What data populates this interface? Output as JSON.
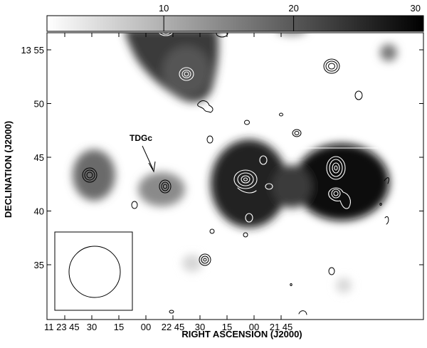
{
  "chart_data": {
    "type": "heatmap",
    "title": "",
    "xlabel": "RIGHT ASCENSION (J2000)",
    "ylabel": "DECLINATION (J2000)",
    "x_tick_labels": [
      "11 23 45",
      "30",
      "15",
      "00",
      "22 45",
      "30",
      "15",
      "00",
      "21 45"
    ],
    "y_tick_labels": [
      "13 55",
      "50",
      "45",
      "40",
      "35"
    ],
    "colorbar": {
      "min": 1,
      "max": 30,
      "ticks": [
        10,
        20,
        30
      ],
      "tick_labels": [
        "10",
        "20",
        "30"
      ],
      "colors": [
        "#ffffff",
        "#000000"
      ]
    },
    "sources": [
      {
        "ra": "11 22 58",
        "dec": "13 56.0",
        "intensity": 22
      },
      {
        "ra": "11 22 54",
        "dec": "13 52.5",
        "intensity": 14
      },
      {
        "ra": "11 23 38",
        "dec": "13 43.5",
        "intensity": 16
      },
      {
        "ra": "11 23 10",
        "dec": "13 42.3",
        "intensity": 10
      },
      {
        "ra": "11 22 33",
        "dec": "13 42.5",
        "intensity": 28
      },
      {
        "ra": "11 22 00",
        "dec": "13 42.5",
        "intensity": 30
      },
      {
        "ra": "11 21 48",
        "dec": "13 55.0",
        "intensity": 8
      },
      {
        "ra": "11 22 58",
        "dec": "13 35.0",
        "intensity": 5
      },
      {
        "ra": "11 22 00",
        "dec": "13 33.0",
        "intensity": 5
      },
      {
        "ra": "11 22 10",
        "dec": "13 57.0",
        "intensity": 4
      }
    ],
    "annotations": [
      {
        "text": "TDGc",
        "points_to": {
          "ra": "11 23 10",
          "dec": "13 42.3"
        }
      }
    ],
    "grid": false,
    "legend": "none"
  }
}
